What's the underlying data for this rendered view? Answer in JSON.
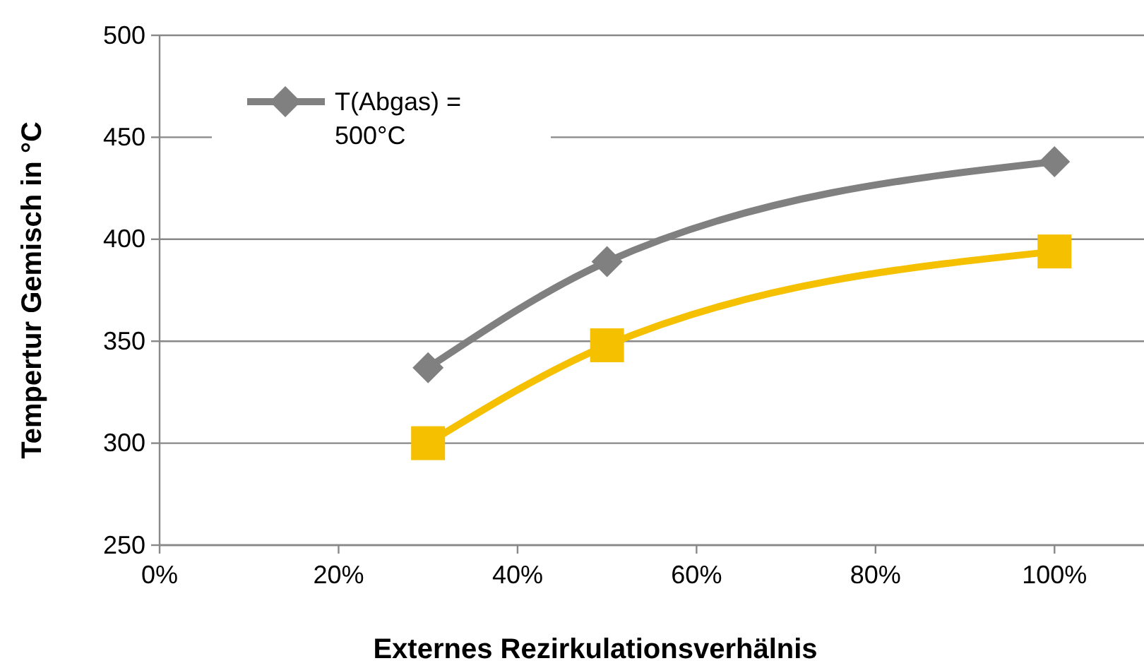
{
  "chart_data": {
    "type": "line",
    "xlabel": "Externes Rezirkulationsverhälnis",
    "ylabel": "Tempertur Gemisch in °C",
    "xlim": [
      0,
      110
    ],
    "xticks": [
      {
        "value": 0,
        "label": "0%"
      },
      {
        "value": 20,
        "label": "20%"
      },
      {
        "value": 40,
        "label": "40%"
      },
      {
        "value": 60,
        "label": "60%"
      },
      {
        "value": 80,
        "label": "80%"
      },
      {
        "value": 100,
        "label": "100%"
      }
    ],
    "ylim": [
      250,
      500
    ],
    "yticks": [
      250,
      300,
      350,
      400,
      450,
      500
    ],
    "grid": "y",
    "legend": "top left",
    "series": [
      {
        "name": "T(Abgas) = 500°C",
        "color": "#808080",
        "marker": "diamond",
        "x": [
          30,
          50,
          100
        ],
        "values": [
          337,
          389,
          438
        ]
      },
      {
        "color": "#f5c000",
        "marker": "square",
        "x": [
          30,
          50,
          100
        ],
        "values": [
          300,
          348,
          394
        ]
      }
    ]
  }
}
